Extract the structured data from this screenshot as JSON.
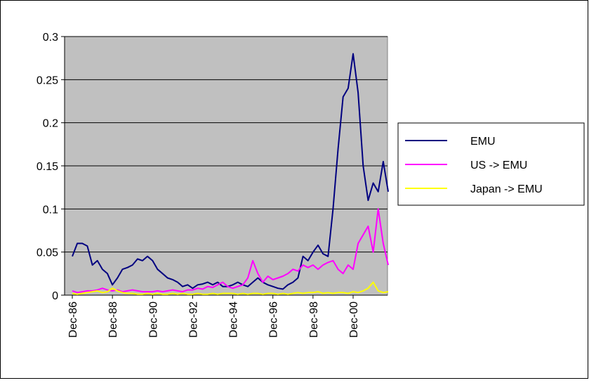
{
  "chart_data": {
    "type": "line",
    "categories": [
      "Dec-86",
      null,
      null,
      null,
      null,
      null,
      null,
      null,
      "Dec-88",
      null,
      null,
      null,
      null,
      null,
      null,
      null,
      "Dec-90",
      null,
      null,
      null,
      null,
      null,
      null,
      null,
      "Dec-92",
      null,
      null,
      null,
      null,
      null,
      null,
      null,
      "Dec-94",
      null,
      null,
      null,
      null,
      null,
      null,
      null,
      "Dec-96",
      null,
      null,
      null,
      null,
      null,
      null,
      null,
      "Dec-98",
      null,
      null,
      null,
      null,
      null,
      null,
      null,
      "Dec-00",
      null,
      null,
      null,
      null,
      null,
      null,
      null
    ],
    "series": [
      {
        "name": "EMU",
        "color": "#000080",
        "values": [
          0.045,
          0.06,
          0.06,
          0.057,
          0.035,
          0.04,
          0.03,
          0.025,
          0.012,
          0.02,
          0.03,
          0.032,
          0.035,
          0.042,
          0.04,
          0.045,
          0.04,
          0.03,
          0.025,
          0.02,
          0.018,
          0.015,
          0.01,
          0.012,
          0.008,
          0.012,
          0.013,
          0.015,
          0.012,
          0.015,
          0.01,
          0.01,
          0.012,
          0.015,
          0.012,
          0.01,
          0.015,
          0.02,
          0.015,
          0.012,
          0.01,
          0.008,
          0.007,
          0.012,
          0.015,
          0.02,
          0.045,
          0.04,
          0.05,
          0.058,
          0.048,
          0.045,
          0.1,
          0.17,
          0.23,
          0.24,
          0.28,
          0.235,
          0.15,
          0.11,
          0.13,
          0.12,
          0.155,
          0.12
        ]
      },
      {
        "name": "US -> EMU",
        "color": "#ff00ff",
        "values": [
          0.005,
          0.003,
          0.004,
          0.005,
          0.005,
          0.006,
          0.008,
          0.006,
          0.005,
          0.006,
          0.004,
          0.005,
          0.006,
          0.005,
          0.004,
          0.004,
          0.004,
          0.005,
          0.004,
          0.005,
          0.006,
          0.005,
          0.004,
          0.006,
          0.006,
          0.008,
          0.007,
          0.01,
          0.009,
          0.012,
          0.015,
          0.01,
          0.008,
          0.01,
          0.012,
          0.02,
          0.04,
          0.025,
          0.015,
          0.022,
          0.018,
          0.02,
          0.022,
          0.025,
          0.03,
          0.028,
          0.035,
          0.032,
          0.035,
          0.03,
          0.035,
          0.038,
          0.04,
          0.03,
          0.025,
          0.035,
          0.03,
          0.06,
          0.07,
          0.08,
          0.05,
          0.1,
          0.06,
          0.035
        ]
      },
      {
        "name": "Japan -> EMU",
        "color": "#ffff00",
        "values": [
          0.002,
          0.001,
          0.002,
          0.003,
          0.004,
          0.005,
          0.003,
          0.004,
          0.008,
          0.005,
          0.003,
          0.002,
          0.002,
          0.001,
          0.001,
          0.002,
          0.001,
          0.002,
          0.001,
          0.001,
          0.002,
          0.001,
          0.002,
          0.001,
          0.001,
          0.002,
          0.001,
          0.001,
          0.002,
          0.001,
          0.002,
          0.002,
          0.002,
          0.001,
          0.002,
          0.001,
          0.002,
          0.002,
          0.001,
          0.002,
          0.002,
          0.001,
          0.002,
          0.001,
          0.002,
          0.003,
          0.002,
          0.003,
          0.003,
          0.004,
          0.002,
          0.003,
          0.002,
          0.003,
          0.003,
          0.002,
          0.004,
          0.003,
          0.005,
          0.008,
          0.015,
          0.005,
          0.003,
          0.004
        ]
      }
    ],
    "ylim": [
      0,
      0.3
    ],
    "yticks": [
      0,
      0.05,
      0.1,
      0.15,
      0.2,
      0.25,
      0.3
    ],
    "grid": true,
    "legend": "right",
    "plot_background": "#c0c0c0"
  }
}
